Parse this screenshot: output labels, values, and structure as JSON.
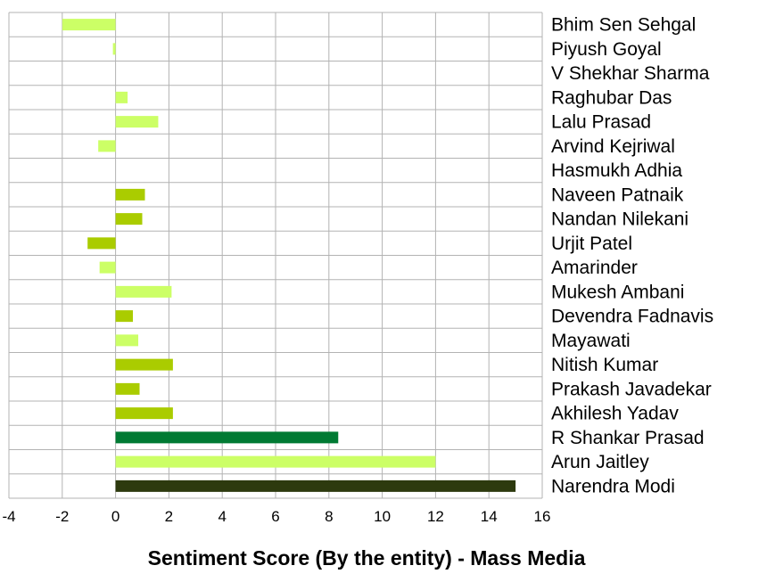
{
  "chart_data": {
    "type": "bar",
    "orientation": "horizontal",
    "xlabel": "Sentiment Score (By the entity) - Mass Media",
    "xlim": [
      -4,
      16
    ],
    "xticks": [
      -4,
      -2,
      0,
      2,
      4,
      6,
      8,
      10,
      12,
      14,
      16
    ],
    "grid": true,
    "categories": [
      "Bhim Sen Sehgal",
      "Piyush Goyal",
      "V Shekhar Sharma",
      "Raghubar Das",
      "Lalu Prasad",
      "Arvind Kejriwal",
      "Hasmukh Adhia",
      "Naveen Patnaik",
      "Nandan Nilekani",
      "Urjit Patel",
      "Amarinder",
      "Mukesh Ambani",
      "Devendra Fadnavis",
      "Mayawati",
      "Nitish Kumar",
      "Prakash Javadekar",
      "Akhilesh Yadav",
      "R Shankar Prasad",
      "Arun Jaitley",
      "Narendra Modi"
    ],
    "values": [
      -2.0,
      -0.1,
      0,
      0.45,
      1.6,
      -0.65,
      0,
      1.1,
      1.0,
      -1.05,
      -0.6,
      2.1,
      0.65,
      0.85,
      2.15,
      0.9,
      2.15,
      8.35,
      12.0,
      15.0
    ],
    "colors": [
      "#ccff66",
      "#ccff66",
      "#ccff66",
      "#ccff66",
      "#ccff66",
      "#ccff66",
      "#ccff66",
      "#aacc00",
      "#aacc00",
      "#aacc00",
      "#ccff66",
      "#ccff66",
      "#aacc00",
      "#ccff66",
      "#aacc00",
      "#aacc00",
      "#aacc00",
      "#007a33",
      "#ccff66",
      "#2d3a0e"
    ]
  }
}
